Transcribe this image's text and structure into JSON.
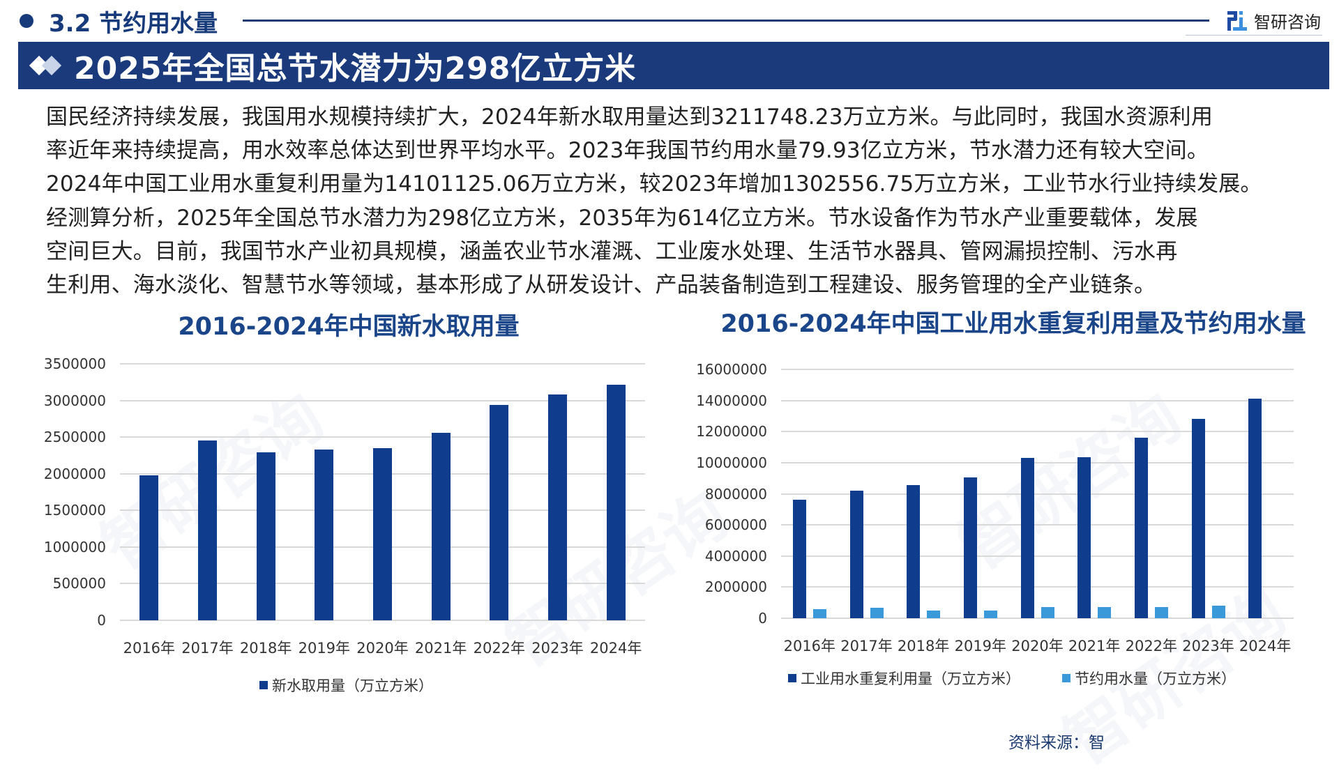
{
  "header": {
    "section_title": "3.2 节约用水量",
    "logo_text": "智研咨询",
    "main_title": "2025年全国总节水潜力为298亿立方米"
  },
  "paragraph": {
    "lines": [
      "国民经济持续发展，我国用水规模持续扩大，2024年新水取用量达到3211748.23万立方米。与此同时，我国水资源利用",
      "率近年来持续提高，用水效率总体达到世界平均水平。2023年我国节约用水量79.93亿立方米，节水潜力还有较大空间。",
      "2024年中国工业用水重复利用量为14101125.06万立方米，较2023年增加1302556.75万立方米，工业节水行业持续发展。",
      "经测算分析，2025年全国总节水潜力为298亿立方米，2035年为614亿立方米。节水设备作为节水产业重要载体，发展",
      "空间巨大。目前，我国节水产业初具规模，涵盖农业节水灌溉、工业废水处理、生活节水器具、管网漏损控制、污水再",
      "生利用、海水淡化、智慧节水等领域，基本形成了从研发设计、产品装备制造到工程建设、服务管理的全产业链条。"
    ]
  },
  "colors": {
    "navy": "#1a3a7c",
    "bar_dark": "#0f3c8c",
    "bar_light": "#3a9ad9",
    "title_blue": "#1b4589"
  },
  "source": "资料来源：智",
  "chart_data": [
    {
      "type": "bar",
      "title": "2016-2024年中国新水取用量",
      "categories": [
        "2016年",
        "2017年",
        "2018年",
        "2019年",
        "2020年",
        "2021年",
        "2022年",
        "2023年",
        "2024年"
      ],
      "series": [
        {
          "name": "新水取用量（万立方米）",
          "values": [
            1980000,
            2450000,
            2290000,
            2330000,
            2345000,
            2555000,
            2940000,
            3080000,
            3211748.23
          ]
        }
      ],
      "yticks": [
        "3500000",
        "3000000",
        "2500000",
        "2000000",
        "1500000",
        "1000000",
        "500000",
        "0"
      ],
      "ylim": [
        0,
        3500000
      ],
      "xlabel": "",
      "ylabel": "",
      "grid": true,
      "legend_position": "bottom"
    },
    {
      "type": "bar",
      "title": "2016-2024年中国工业用水重复利用量及节约用水量",
      "categories": [
        "2016年",
        "2017年",
        "2018年",
        "2019年",
        "2020年",
        "2021年",
        "2022年",
        "2023年",
        "2024年"
      ],
      "series": [
        {
          "name": "工业用水重复利用量（万立方米）",
          "values": [
            7600000,
            8200000,
            8550000,
            9050000,
            10300000,
            10350000,
            11600000,
            12798568.31,
            14101125.06
          ]
        },
        {
          "name": "节约用水量（万立方米）",
          "values": [
            600000,
            650000,
            500000,
            480000,
            700000,
            730000,
            700000,
            799300,
            0
          ]
        }
      ],
      "yticks": [
        "16000000",
        "14000000",
        "12000000",
        "10000000",
        "8000000",
        "6000000",
        "4000000",
        "2000000",
        "0"
      ],
      "ylim": [
        0,
        16000000
      ],
      "xlabel": "",
      "ylabel": "",
      "grid": true,
      "legend_position": "bottom"
    }
  ]
}
